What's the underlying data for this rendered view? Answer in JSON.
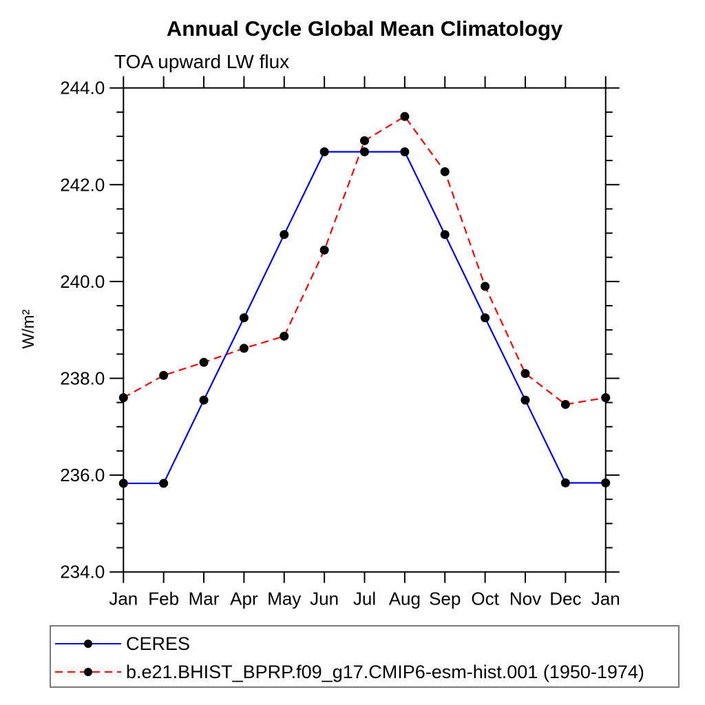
{
  "title": "Annual Cycle Global Mean Climatology",
  "subtitle": "TOA upward LW flux",
  "ylabel": "W/m²",
  "colors": {
    "ceres_line": "#0000ff",
    "model_line": "#ff0000",
    "marker": "#000000",
    "axis": "#000000",
    "legend_border": "#7a7a7a"
  },
  "chart_data": {
    "type": "line",
    "x": [
      "Jan",
      "Feb",
      "Mar",
      "Apr",
      "May",
      "Jun",
      "Jul",
      "Aug",
      "Sep",
      "Oct",
      "Nov",
      "Dec",
      "Jan"
    ],
    "series": [
      {
        "name": "CERES",
        "color": "#0000ff",
        "style": "solid",
        "marker": "circle",
        "marker_color": "#000000",
        "values": [
          235.83,
          235.83,
          237.55,
          239.25,
          240.97,
          242.68,
          242.68,
          242.68,
          240.97,
          239.25,
          237.55,
          235.84,
          235.84
        ]
      },
      {
        "name": "b.e21.BHIST_BPRP.f09_g17.CMIP6-esm-hist.001 (1950-1974)",
        "color": "#ff0000",
        "style": "dashed",
        "marker": "circle",
        "marker_color": "#000000",
        "values": [
          237.6,
          238.06,
          238.33,
          238.62,
          238.87,
          240.65,
          242.91,
          243.41,
          242.27,
          239.9,
          238.1,
          237.46,
          237.6
        ]
      }
    ],
    "ylim": [
      234.0,
      244.0
    ],
    "ytick_major": [
      234,
      236,
      238,
      240,
      242,
      244
    ],
    "ytick_labels": [
      "234.0",
      "236.0",
      "238.0",
      "240.0",
      "242.0",
      "244.0"
    ],
    "ytick_minor_step": 0.5,
    "grid": false,
    "legend_position": "bottom-left-box",
    "title": "Annual Cycle Global Mean Climatology",
    "subtitle": "TOA upward LW flux",
    "ylabel": "W/m²",
    "xlabel": ""
  }
}
